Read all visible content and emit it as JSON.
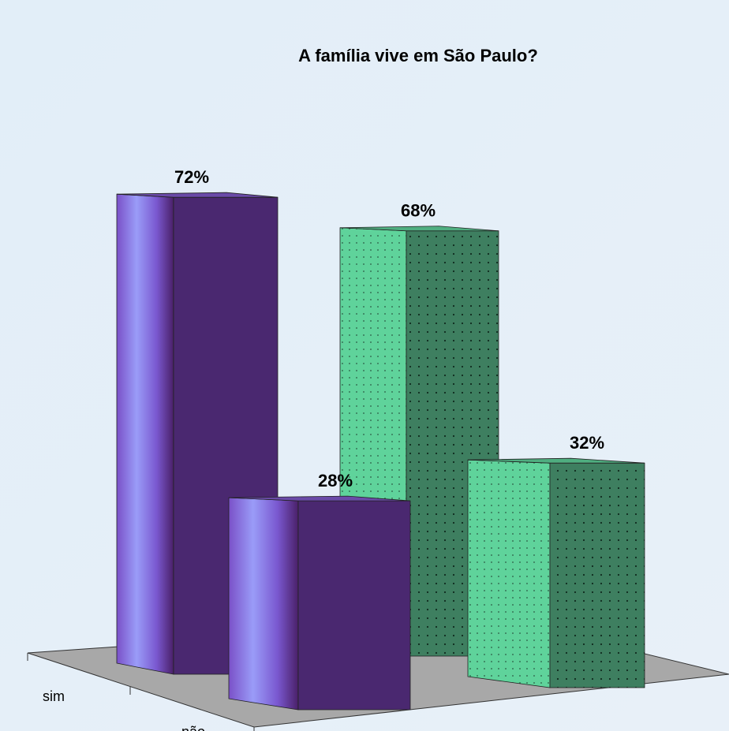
{
  "chart_data": {
    "type": "bar3d",
    "title": "A família vive em São Paulo?",
    "categories": [
      "sim",
      "não"
    ],
    "series": [
      {
        "color": "#4a2870",
        "values": [
          72,
          28
        ],
        "value_labels": [
          "72%",
          "28%"
        ]
      },
      {
        "color": "#3d7d5e",
        "values": [
          68,
          32
        ],
        "value_labels": [
          "68%",
          "32%"
        ]
      }
    ]
  }
}
